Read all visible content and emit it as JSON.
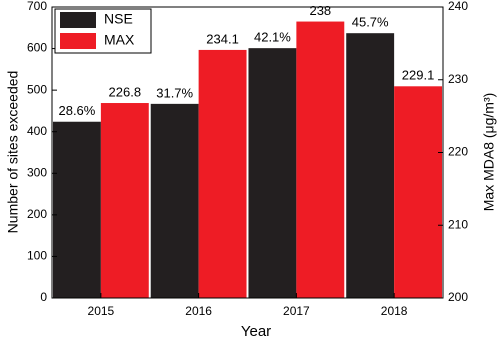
{
  "chart_data": {
    "type": "bar",
    "categories": [
      "2015",
      "2016",
      "2017",
      "2018"
    ],
    "series": [
      {
        "name": "NSE",
        "color": "#231f20",
        "values": [
          424,
          467,
          601,
          637
        ],
        "annotations": [
          "28.6%",
          "31.7%",
          "42.1%",
          "45.7%"
        ]
      },
      {
        "name": "MAX",
        "color": "#ee1c25",
        "values": [
          226.8,
          234.1,
          238,
          229.1
        ],
        "axis": "y2"
      }
    ],
    "xlabel": "Year",
    "ylabel": "Number of sites exceeded",
    "y2label": "Max MDA8 (μg/m³)",
    "ylim": [
      0,
      700
    ],
    "yticks": [
      0,
      100,
      200,
      300,
      400,
      500,
      600,
      700
    ],
    "y2lim": [
      200,
      240
    ],
    "y2ticks": [
      200,
      210,
      220,
      230,
      240
    ],
    "legend": "upper-left"
  }
}
